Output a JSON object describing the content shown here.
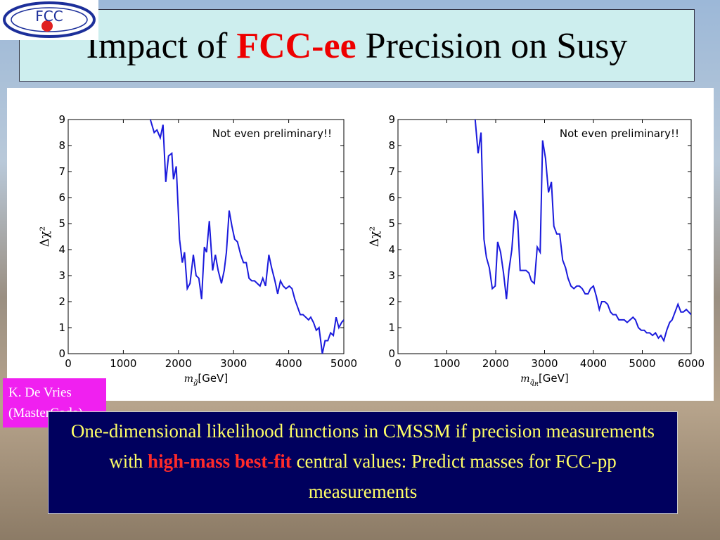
{
  "logo": "FCC",
  "title": [
    "Impact of",
    "FCC-ee",
    "Precision on Susy"
  ],
  "author": [
    "K. De Vries",
    "(MasterCode)"
  ],
  "body": [
    "One-dimensional likelihood functions in CMSSM if precision measurements with",
    "high-mass best-fit",
    "central values: Predict masses for FCC-pp measurements"
  ],
  "chart_data": [
    {
      "type": "line",
      "annotation": "Not even preliminary!!",
      "ylabel": "Δχ²",
      "xlabel": "m",
      "xlabel_sub": "g̃",
      "xlabel_unit": "[GeV]",
      "xlim": [
        0,
        5000
      ],
      "ylim": [
        0,
        9
      ],
      "xticks": [
        0,
        1000,
        2000,
        3000,
        4000,
        5000
      ],
      "yticks": [
        0,
        1,
        2,
        3,
        4,
        5,
        6,
        7,
        8,
        9
      ],
      "series": [
        {
          "color": "#1a1adc",
          "x": [
            1490,
            1560,
            1610,
            1670,
            1720,
            1770,
            1820,
            1880,
            1910,
            1960,
            2020,
            2070,
            2110,
            2160,
            2210,
            2270,
            2320,
            2370,
            2420,
            2470,
            2510,
            2560,
            2620,
            2670,
            2720,
            2780,
            2830,
            2870,
            2920,
            2970,
            3020,
            3070,
            3130,
            3180,
            3230,
            3280,
            3330,
            3380,
            3430,
            3480,
            3530,
            3580,
            3640,
            3690,
            3750,
            3800,
            3850,
            3900,
            3950,
            4010,
            4060,
            4110,
            4160,
            4210,
            4260,
            4310,
            4360,
            4400,
            4450,
            4500,
            4550,
            4610,
            4660,
            4710,
            4760,
            4810,
            4860,
            4910,
            4960,
            5000
          ],
          "values": [
            9.0,
            8.5,
            8.6,
            8.3,
            8.8,
            6.6,
            7.6,
            7.7,
            6.7,
            7.2,
            4.4,
            3.5,
            3.9,
            2.5,
            2.7,
            3.8,
            3.0,
            2.9,
            2.1,
            4.1,
            3.9,
            5.1,
            3.2,
            3.8,
            3.2,
            2.7,
            3.2,
            3.9,
            5.5,
            4.9,
            4.4,
            4.3,
            3.8,
            3.5,
            3.5,
            2.9,
            2.8,
            2.8,
            2.7,
            2.6,
            2.9,
            2.6,
            3.8,
            3.3,
            2.8,
            2.3,
            2.8,
            2.6,
            2.5,
            2.6,
            2.5,
            2.1,
            1.8,
            1.5,
            1.5,
            1.4,
            1.3,
            1.4,
            1.2,
            0.9,
            1.0,
            0.0,
            0.5,
            0.5,
            0.8,
            0.7,
            1.4,
            1.0,
            1.2,
            1.3
          ]
        }
      ]
    },
    {
      "type": "line",
      "annotation": "Not even preliminary!!",
      "ylabel": "Δχ²",
      "xlabel": "m",
      "xlabel_sub": "q̃",
      "xlabel_subsub": "R",
      "xlabel_unit": "[GeV]",
      "xlim": [
        0,
        6000
      ],
      "ylim": [
        0,
        9
      ],
      "xticks": [
        0,
        1000,
        2000,
        3000,
        4000,
        5000,
        6000
      ],
      "yticks": [
        0,
        1,
        2,
        3,
        4,
        5,
        6,
        7,
        8,
        9
      ],
      "series": [
        {
          "color": "#1a1adc",
          "x": [
            1580,
            1640,
            1700,
            1760,
            1810,
            1870,
            1930,
            1990,
            2040,
            2100,
            2160,
            2220,
            2270,
            2330,
            2390,
            2450,
            2500,
            2560,
            2620,
            2680,
            2730,
            2790,
            2850,
            2910,
            2960,
            3020,
            3080,
            3140,
            3190,
            3250,
            3310,
            3370,
            3430,
            3480,
            3540,
            3600,
            3660,
            3710,
            3770,
            3830,
            3890,
            3940,
            4000,
            4060,
            4120,
            4170,
            4230,
            4290,
            4350,
            4400,
            4460,
            4520,
            4580,
            4630,
            4690,
            4750,
            4810,
            4860,
            4920,
            4980,
            5040,
            5090,
            5150,
            5210,
            5270,
            5330,
            5380,
            5440,
            5500,
            5560,
            5610,
            5670,
            5730,
            5790,
            5840,
            5900,
            6000
          ],
          "values": [
            9.0,
            7.7,
            8.5,
            4.4,
            3.7,
            3.3,
            2.5,
            2.6,
            4.3,
            3.9,
            3.1,
            2.1,
            3.2,
            4.0,
            5.5,
            5.1,
            3.2,
            3.2,
            3.2,
            3.1,
            2.8,
            2.7,
            4.1,
            3.9,
            8.2,
            7.5,
            6.2,
            6.6,
            4.9,
            4.6,
            4.6,
            3.6,
            3.3,
            2.9,
            2.6,
            2.5,
            2.6,
            2.6,
            2.5,
            2.3,
            2.3,
            2.5,
            2.6,
            2.2,
            1.7,
            2.0,
            2.0,
            1.9,
            1.6,
            1.5,
            1.5,
            1.3,
            1.3,
            1.3,
            1.2,
            1.3,
            1.4,
            1.3,
            1.0,
            0.9,
            0.9,
            0.8,
            0.8,
            0.7,
            0.8,
            0.6,
            0.7,
            0.5,
            0.9,
            1.2,
            1.3,
            1.6,
            1.9,
            1.6,
            1.6,
            1.7,
            1.5
          ]
        }
      ]
    }
  ]
}
